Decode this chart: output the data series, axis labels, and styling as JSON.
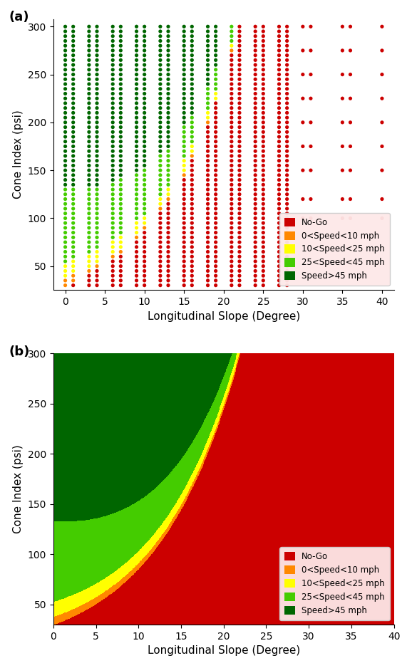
{
  "title_a": "(a)",
  "title_b": "(b)",
  "xlabel": "Longitudinal Slope (Degree)",
  "ylabel": "Cone Index (psi)",
  "xticks": [
    0,
    5,
    10,
    15,
    20,
    25,
    30,
    35,
    40
  ],
  "yticks": [
    50,
    100,
    150,
    200,
    250,
    300
  ],
  "colors": {
    "nogo": "#cc0000",
    "slow": "#ff8800",
    "medium": "#ffff00",
    "fast": "#44cc00",
    "vfast": "#006600"
  },
  "legend_labels": [
    "No-Go",
    "0<Speed<10 mph",
    "10<Speed<25 mph",
    "25<Speed<45 mph",
    "Speed>45 mph"
  ]
}
